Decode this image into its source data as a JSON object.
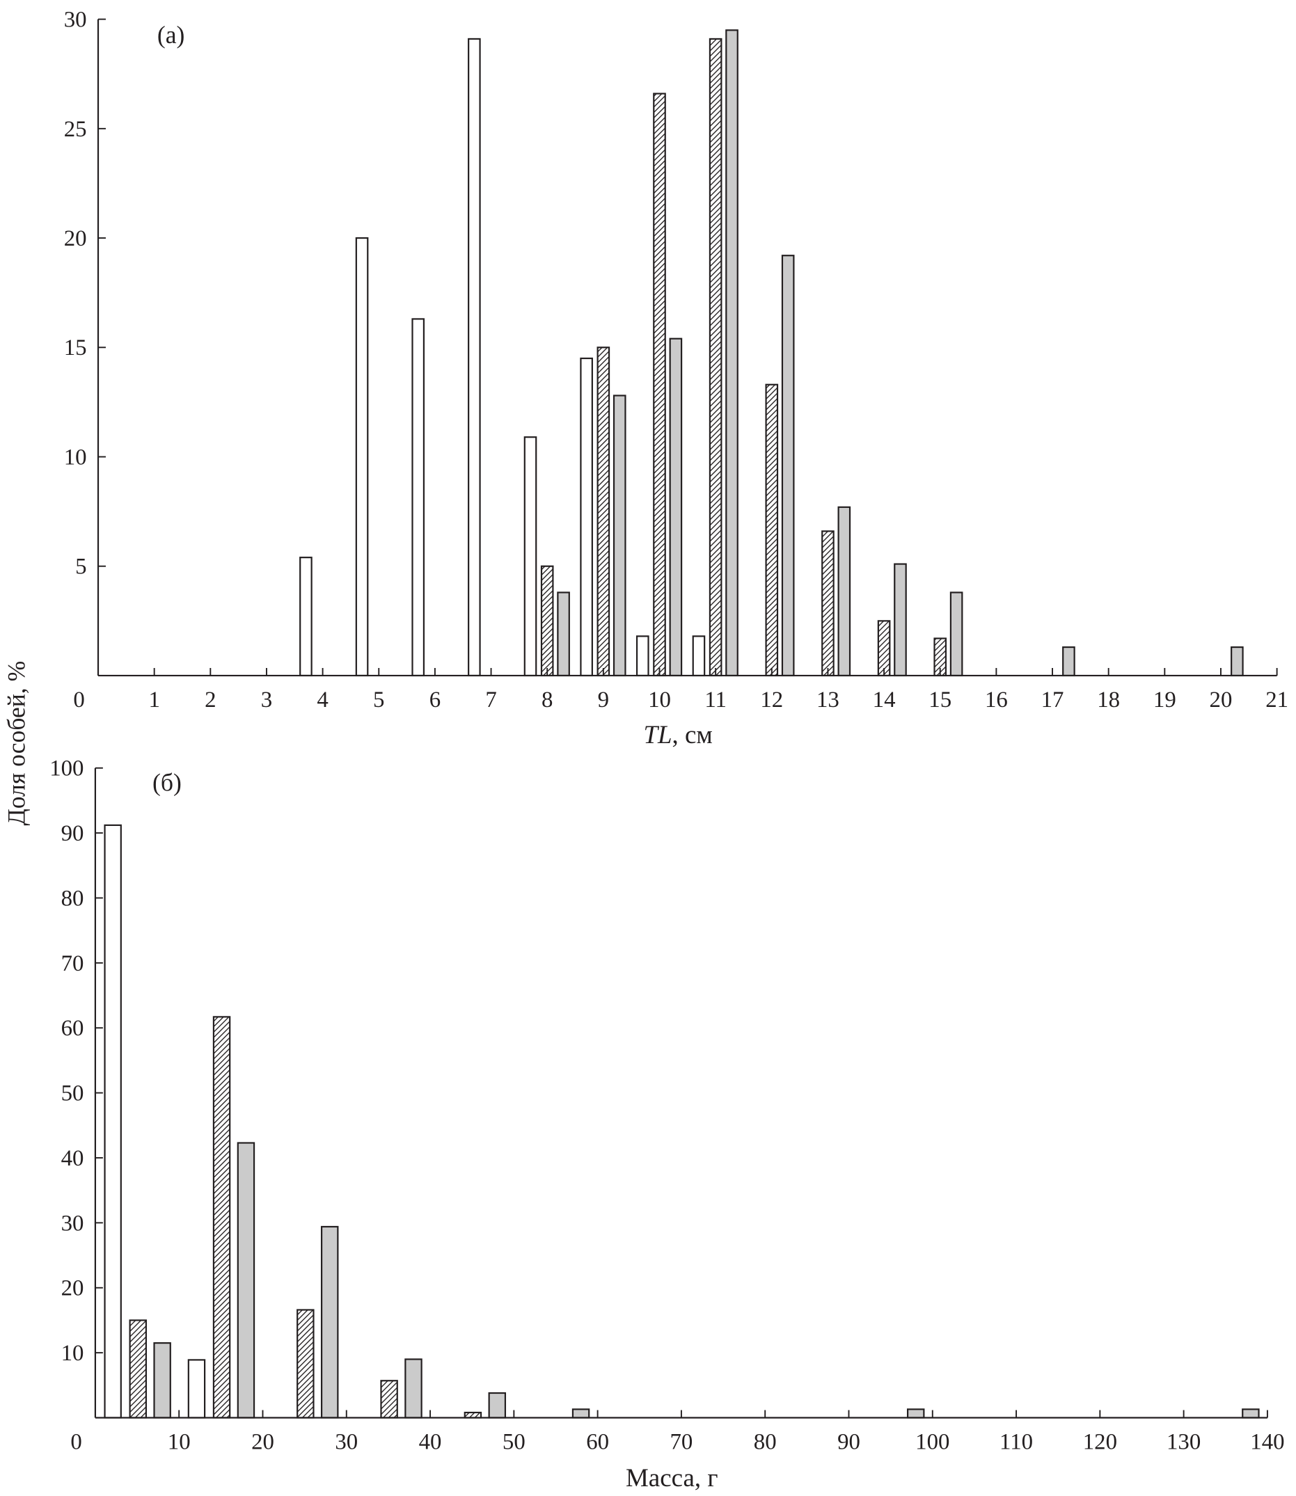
{
  "y_label": "Доля особей, %",
  "chart_data": [
    {
      "type": "bar",
      "panel_label": "(а)",
      "xlabel_italic": "TL",
      "xlabel_rest": ", см",
      "xlim": [
        0,
        21
      ],
      "ylim": [
        0,
        30
      ],
      "x_ticks": [
        0,
        1,
        2,
        3,
        4,
        5,
        6,
        7,
        8,
        9,
        10,
        11,
        12,
        13,
        14,
        15,
        16,
        17,
        18,
        19,
        20,
        21
      ],
      "y_ticks": [
        5,
        10,
        15,
        20,
        25,
        30
      ],
      "y_zero_label": "0",
      "grid": false,
      "series": [
        {
          "style": "white",
          "fill": "#ffffff",
          "points": [
            [
              4,
              5.4
            ],
            [
              5,
              20.0
            ],
            [
              6,
              16.3
            ],
            [
              7,
              29.1
            ],
            [
              8,
              10.9
            ],
            [
              9,
              14.5
            ],
            [
              10,
              1.8
            ],
            [
              11,
              1.8
            ]
          ]
        },
        {
          "style": "hatched",
          "fill": "#9a9a9a",
          "points": [
            [
              8,
              5.0
            ],
            [
              9,
              15.0
            ],
            [
              10,
              26.6
            ],
            [
              11,
              29.1
            ],
            [
              12,
              13.3
            ],
            [
              13,
              6.6
            ],
            [
              14,
              2.5
            ],
            [
              15,
              1.7
            ]
          ]
        },
        {
          "style": "gray",
          "fill": "#cbcbcb",
          "points": [
            [
              8,
              3.8
            ],
            [
              9,
              12.8
            ],
            [
              10,
              15.4
            ],
            [
              11,
              29.5
            ],
            [
              12,
              19.2
            ],
            [
              13,
              7.7
            ],
            [
              14,
              5.1
            ],
            [
              15,
              3.8
            ],
            [
              17,
              1.3
            ],
            [
              20,
              1.3
            ]
          ]
        }
      ]
    },
    {
      "type": "bar",
      "panel_label": "(б)",
      "xlabel_italic": "",
      "xlabel_rest": "Масса, г",
      "xlim": [
        0,
        140
      ],
      "ylim": [
        0,
        100
      ],
      "x_ticks": [
        0,
        10,
        20,
        30,
        40,
        50,
        60,
        70,
        80,
        90,
        100,
        110,
        120,
        130,
        140
      ],
      "y_ticks": [
        10,
        20,
        30,
        40,
        50,
        60,
        70,
        80,
        90,
        100
      ],
      "y_zero_label": "",
      "grid": false,
      "series": [
        {
          "style": "white",
          "fill": "#ffffff",
          "points": [
            [
              0,
              91.2
            ],
            [
              10,
              8.9
            ]
          ]
        },
        {
          "style": "hatched",
          "fill": "#9a9a9a",
          "points": [
            [
              0,
              15.0
            ],
            [
              10,
              61.7
            ],
            [
              20,
              16.6
            ],
            [
              30,
              5.7
            ],
            [
              40,
              0.8
            ]
          ]
        },
        {
          "style": "gray",
          "fill": "#cbcbcb",
          "points": [
            [
              0,
              11.5
            ],
            [
              10,
              42.3
            ],
            [
              20,
              29.4
            ],
            [
              30,
              9.0
            ],
            [
              40,
              3.8
            ],
            [
              50,
              1.3
            ],
            [
              90,
              1.3
            ],
            [
              130,
              1.3
            ]
          ]
        }
      ]
    }
  ]
}
